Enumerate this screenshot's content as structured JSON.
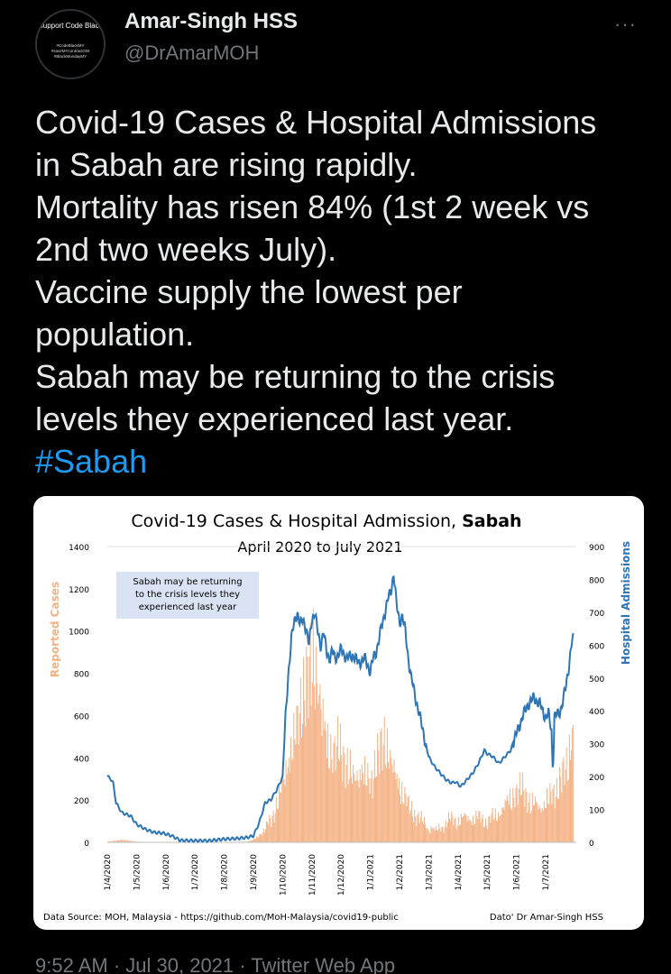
{
  "author": {
    "name": "Amar-Singh HSS",
    "handle": "@DrAmarMOH",
    "avatar_title": "Support Code Black",
    "avatar_tags": [
      "#CodeBlackMY",
      "#saveMYcontractOW",
      "#BlackMondayMY"
    ]
  },
  "more_label": "···",
  "tweet": {
    "lines": [
      "Covid-19 Cases & Hospital Admissions",
      "in Sabah are rising rapidly.",
      "Mortality has risen 84% (1st 2 week vs",
      "2nd two weeks July).",
      "Vaccine supply the lowest per",
      "population.",
      "Sabah may be returning to the crisis",
      "levels they experienced last year."
    ],
    "hashtag": "#Sabah"
  },
  "colors": {
    "background": "#000000",
    "text": "#e7e9ea",
    "muted": "#71767b",
    "link": "#1d9bf0",
    "cases_bar": "#f4b183",
    "admissions_line": "#2e75b6",
    "annotation_box": "#dae3f3"
  },
  "chart_data": {
    "type": "bar",
    "title_prefix": "Covid-19 Cases & Hospital Admission, ",
    "title_bold": "Sabah",
    "subtitle": "April 2020 to July 2021",
    "ylabel_left": "Reported Cases",
    "ylabel_right": "Hospital Admissions",
    "ylim_left": [
      0,
      1400
    ],
    "ylim_right": [
      0,
      900
    ],
    "yticks_left": [
      "0",
      "200",
      "400",
      "600",
      "800",
      "1000",
      "1200",
      "1400"
    ],
    "yticks_right": [
      "0",
      "100",
      "200",
      "300",
      "400",
      "500",
      "600",
      "700",
      "800",
      "900"
    ],
    "xticks": [
      "1/4/2020",
      "1/5/2020",
      "1/6/2020",
      "1/7/2020",
      "1/8/2020",
      "1/9/2020",
      "1/10/2020",
      "1/11/2020",
      "1/12/2020",
      "1/1/2021",
      "1/2/2021",
      "1/3/2021",
      "1/4/2021",
      "1/5/2021",
      "1/6/2021",
      "1/7/2021"
    ],
    "annotation": [
      "Sabah may be returning",
      "to the crisis levels they",
      "experienced last year"
    ],
    "source": "Data Source: MOH, Malaysia - https://github.com/MoH-Malaysia/covid19-public",
    "credit": "Dato' Dr Amar-Singh HSS",
    "x_max_month": 15.95,
    "series": [
      {
        "name": "Reported Cases",
        "axis": "left",
        "style": "bars",
        "points": [
          [
            0,
            5
          ],
          [
            0.5,
            15
          ],
          [
            1,
            4
          ],
          [
            1.5,
            2
          ],
          [
            2,
            3
          ],
          [
            2.5,
            2
          ],
          [
            3,
            1
          ],
          [
            3.5,
            2
          ],
          [
            4,
            2
          ],
          [
            4.5,
            3
          ],
          [
            4.8,
            5
          ],
          [
            5,
            20
          ],
          [
            5.3,
            60
          ],
          [
            5.6,
            150
          ],
          [
            5.9,
            300
          ],
          [
            6.1,
            500
          ],
          [
            6.4,
            700
          ],
          [
            6.7,
            900
          ],
          [
            6.9,
            1050
          ],
          [
            7.05,
            1180
          ],
          [
            7.25,
            950
          ],
          [
            7.5,
            700
          ],
          [
            7.7,
            550
          ],
          [
            7.9,
            600
          ],
          [
            8.1,
            500
          ],
          [
            8.4,
            420
          ],
          [
            8.7,
            480
          ],
          [
            9,
            380
          ],
          [
            9.3,
            550
          ],
          [
            9.5,
            650
          ],
          [
            9.7,
            520
          ],
          [
            10,
            380
          ],
          [
            10.3,
            220
          ],
          [
            10.6,
            160
          ],
          [
            10.9,
            110
          ],
          [
            11.2,
            90
          ],
          [
            11.5,
            110
          ],
          [
            11.8,
            140
          ],
          [
            12.1,
            150
          ],
          [
            12.4,
            170
          ],
          [
            12.7,
            150
          ],
          [
            13,
            130
          ],
          [
            13.3,
            170
          ],
          [
            13.6,
            250
          ],
          [
            13.9,
            310
          ],
          [
            14.2,
            320
          ],
          [
            14.5,
            250
          ],
          [
            14.8,
            240
          ],
          [
            15.1,
            280
          ],
          [
            15.4,
            330
          ],
          [
            15.7,
            480
          ],
          [
            15.85,
            650
          ],
          [
            15.95,
            800
          ]
        ]
      },
      {
        "name": "Hospital Admissions",
        "axis": "right",
        "style": "line",
        "points": [
          [
            0,
            200
          ],
          [
            0.1,
            195
          ],
          [
            0.2,
            180
          ],
          [
            0.3,
            120
          ],
          [
            0.5,
            90
          ],
          [
            0.8,
            80
          ],
          [
            1,
            55
          ],
          [
            1.3,
            40
          ],
          [
            1.6,
            30
          ],
          [
            1.9,
            28
          ],
          [
            2.2,
            20
          ],
          [
            2.5,
            6
          ],
          [
            3,
            5
          ],
          [
            3.5,
            5
          ],
          [
            4,
            10
          ],
          [
            4.5,
            12
          ],
          [
            4.8,
            15
          ],
          [
            5,
            20
          ],
          [
            5.2,
            60
          ],
          [
            5.4,
            120
          ],
          [
            5.6,
            130
          ],
          [
            5.8,
            160
          ],
          [
            6,
            200
          ],
          [
            6.1,
            380
          ],
          [
            6.2,
            520
          ],
          [
            6.3,
            620
          ],
          [
            6.4,
            670
          ],
          [
            6.5,
            700
          ],
          [
            6.6,
            660
          ],
          [
            6.7,
            680
          ],
          [
            6.8,
            650
          ],
          [
            6.9,
            600
          ],
          [
            7,
            680
          ],
          [
            7.1,
            700
          ],
          [
            7.2,
            640
          ],
          [
            7.3,
            600
          ],
          [
            7.4,
            640
          ],
          [
            7.5,
            580
          ],
          [
            7.6,
            560
          ],
          [
            7.7,
            580
          ],
          [
            7.8,
            560
          ],
          [
            8,
            585
          ],
          [
            8.2,
            560
          ],
          [
            8.4,
            570
          ],
          [
            8.6,
            545
          ],
          [
            8.8,
            560
          ],
          [
            9,
            520
          ],
          [
            9.1,
            560
          ],
          [
            9.2,
            580
          ],
          [
            9.3,
            620
          ],
          [
            9.4,
            660
          ],
          [
            9.5,
            700
          ],
          [
            9.6,
            740
          ],
          [
            9.7,
            760
          ],
          [
            9.8,
            820
          ],
          [
            9.9,
            720
          ],
          [
            10,
            670
          ],
          [
            10.1,
            690
          ],
          [
            10.2,
            640
          ],
          [
            10.3,
            560
          ],
          [
            10.4,
            500
          ],
          [
            10.6,
            420
          ],
          [
            10.8,
            340
          ],
          [
            11,
            260
          ],
          [
            11.2,
            230
          ],
          [
            11.4,
            210
          ],
          [
            11.6,
            190
          ],
          [
            11.8,
            180
          ],
          [
            11.9,
            185
          ],
          [
            12.1,
            170
          ],
          [
            12.3,
            190
          ],
          [
            12.5,
            210
          ],
          [
            12.7,
            240
          ],
          [
            12.9,
            280
          ],
          [
            13,
            270
          ],
          [
            13.2,
            260
          ],
          [
            13.4,
            240
          ],
          [
            13.6,
            260
          ],
          [
            13.8,
            280
          ],
          [
            14,
            330
          ],
          [
            14.2,
            380
          ],
          [
            14.4,
            420
          ],
          [
            14.6,
            440
          ],
          [
            14.8,
            420
          ],
          [
            15,
            380
          ],
          [
            15.1,
            390
          ],
          [
            15.2,
            340
          ],
          [
            15.25,
            200
          ],
          [
            15.3,
            380
          ],
          [
            15.5,
            400
          ],
          [
            15.6,
            430
          ],
          [
            15.7,
            480
          ],
          [
            15.8,
            540
          ],
          [
            15.9,
            610
          ],
          [
            15.95,
            620
          ]
        ]
      }
    ]
  },
  "footer": {
    "time": "9:52 AM",
    "sep1": " · ",
    "date": "Jul 30, 2021",
    "sep2": " · ",
    "client": "Twitter Web App"
  }
}
